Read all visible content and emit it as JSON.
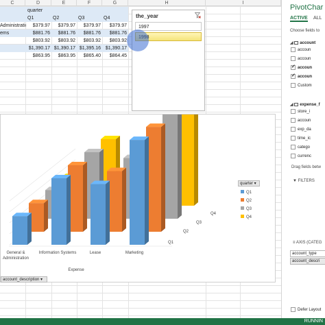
{
  "grid": {
    "column_letters": [
      "C",
      "D",
      "E",
      "F",
      "G",
      "H",
      "I"
    ]
  },
  "pivot": {
    "header_label": "quarter",
    "quarters": [
      "Q1",
      "Q2",
      "Q3",
      "Q4"
    ],
    "rows": [
      {
        "label": "Administration",
        "values": [
          "$379.97",
          "$379.97",
          "$379.97",
          "$379.97"
        ]
      },
      {
        "label": "ems",
        "values": [
          "$881.76",
          "$881.76",
          "$881.76",
          "$881.76"
        ]
      },
      {
        "label": "",
        "values": [
          "$803.92",
          "$803.92",
          "$803.92",
          "$803.92"
        ]
      },
      {
        "label": "",
        "values": [
          "$1,390.17",
          "$1,390.17",
          "$1,395.16",
          "$1,390.17"
        ]
      },
      {
        "label": "",
        "values": [
          "$863.95",
          "$863.95",
          "$865.40",
          "$864.45"
        ]
      }
    ]
  },
  "slicer": {
    "title": "the_year",
    "items": [
      "1997",
      "1998"
    ],
    "selected": "1998"
  },
  "chart": {
    "axis_filter_label": "account_description",
    "legend_button_label": "quarter",
    "legend": [
      "Q1",
      "Q2",
      "Q3",
      "Q4"
    ],
    "axis_title": "Expense"
  },
  "chart_data": {
    "type": "bar",
    "title": "",
    "xlabel": "Expense",
    "ylabel": "",
    "categories": [
      "General & Administration",
      "Information Systems",
      "Lease",
      "Marketing"
    ],
    "depth_labels": [
      "Q1",
      "Q2",
      "Q3",
      "Q4"
    ],
    "series": [
      {
        "name": "Q1",
        "values": [
          380,
          882,
          804,
          1390
        ]
      },
      {
        "name": "Q2",
        "values": [
          380,
          882,
          804,
          1390
        ]
      },
      {
        "name": "Q3",
        "values": [
          380,
          882,
          804,
          1395
        ]
      },
      {
        "name": "Q4",
        "values": [
          380,
          882,
          804,
          1390
        ]
      }
    ],
    "colors": {
      "Q1": "#5b9bd5",
      "Q2": "#ed7d31",
      "Q3": "#a5a5a5",
      "Q4": "#ffc000"
    },
    "ylim": [
      0,
      1500
    ],
    "grid": true,
    "legend_position": "right"
  },
  "pane": {
    "title": "PivotChar",
    "tabs": [
      "ACTIVE",
      "ALL"
    ],
    "choose_text": "Choose fields to",
    "table1": {
      "name": "account",
      "fields": [
        {
          "label": "accoun",
          "checked": false
        },
        {
          "label": "accoun",
          "checked": false
        },
        {
          "label": "accoun",
          "checked": true
        },
        {
          "label": "accoun",
          "checked": true
        },
        {
          "label": "Custom",
          "checked": false
        }
      ]
    },
    "table2": {
      "name": "expense_f",
      "fields": [
        {
          "label": "store_i",
          "checked": false
        },
        {
          "label": "accoun",
          "checked": false
        },
        {
          "label": "exp_da",
          "checked": false
        },
        {
          "label": "time_ic",
          "checked": false
        },
        {
          "label": "catego",
          "checked": false
        },
        {
          "label": "currenc",
          "checked": false
        }
      ]
    },
    "drag_text": "Drag fields betw",
    "filters_label": "FILTERS",
    "axis_label": "AXIS (CATEG",
    "axis_fields": [
      "account_type",
      "account_descri"
    ],
    "defer_label": "Defer Layout"
  },
  "status": {
    "text": "RUNNIN"
  }
}
